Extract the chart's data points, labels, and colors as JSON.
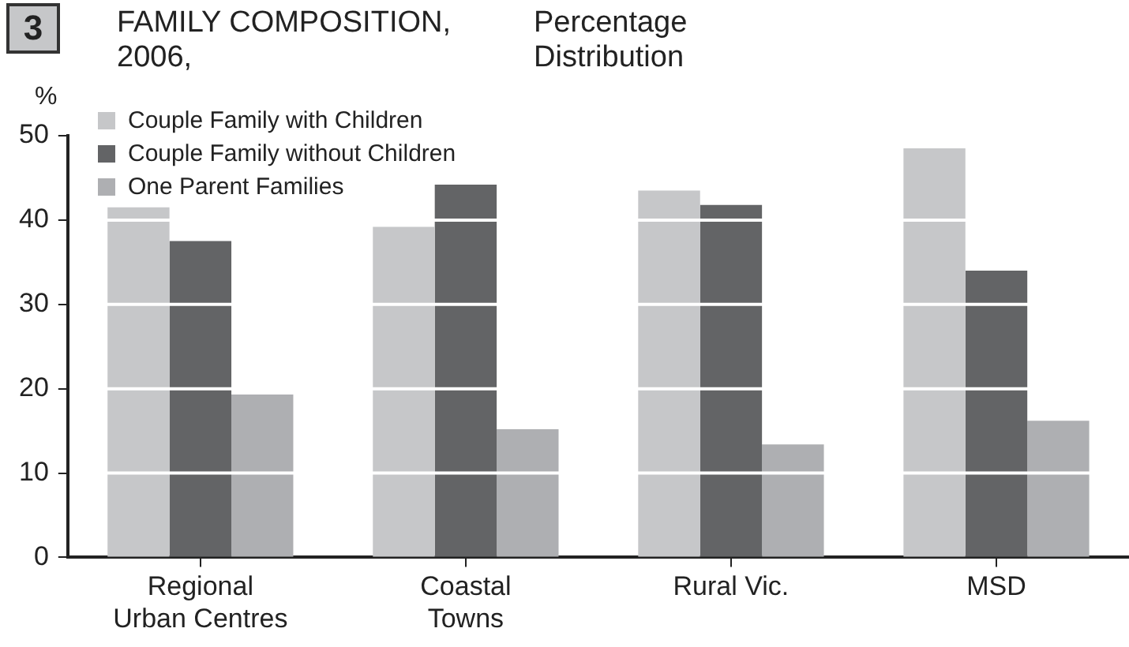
{
  "chart_data": {
    "type": "bar",
    "title": "FAMILY COMPOSITION, 2006,",
    "subtitle": "Percentage Distribution",
    "ylabel": "%",
    "annotations": [
      "3"
    ],
    "categories": [
      "Regional Urban Centres",
      "Coastal Towns",
      "Rural Vic.",
      "MSD"
    ],
    "series": [
      {
        "name": "Couple Family with Children",
        "color": "#c6c7c9",
        "values": [
          41.5,
          39.2,
          43.5,
          48.5
        ]
      },
      {
        "name": "Couple Family without Children",
        "color": "#636466",
        "values": [
          37.5,
          44.2,
          41.8,
          34
        ]
      },
      {
        "name": "One Parent Families",
        "color": "#aeafb2",
        "values": [
          19.3,
          15.2,
          13.4,
          16.2
        ]
      }
    ],
    "ylim": [
      0,
      50
    ],
    "yticks": [
      0,
      10,
      20,
      30,
      40,
      50
    ],
    "grid": "y",
    "legend": "top left"
  }
}
